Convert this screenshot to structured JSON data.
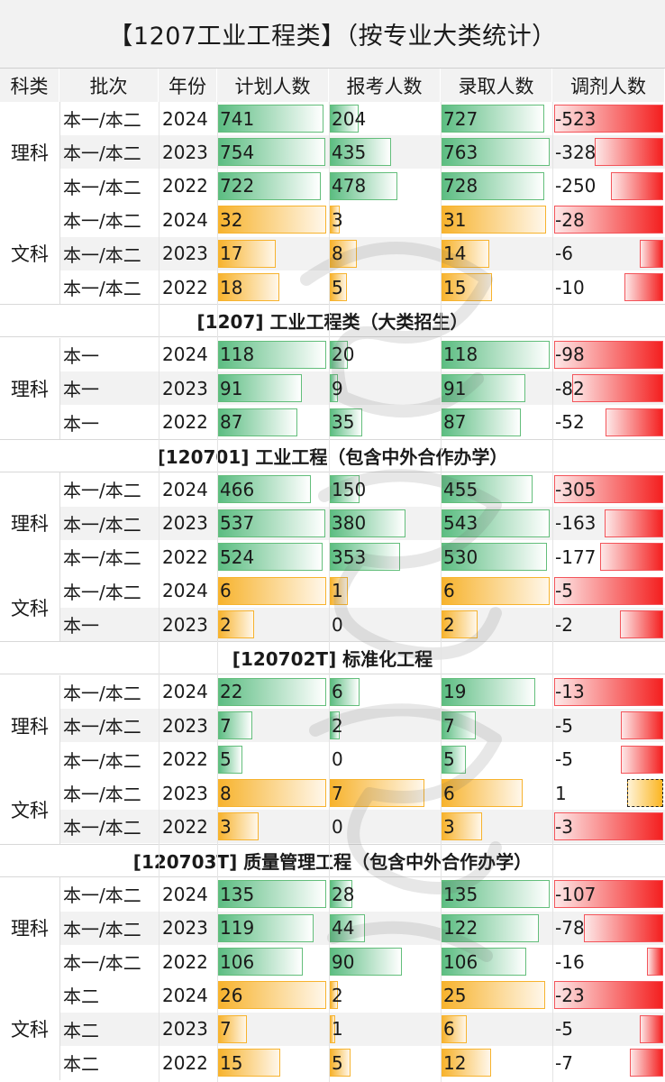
{
  "title": "【1207工业工程类】（按专业大类统计）",
  "headers": [
    "科类",
    "批次",
    "年份",
    "计划人数",
    "报考人数",
    "录取人数",
    "调剂人数"
  ],
  "colors": {
    "green": "#63be7b",
    "orange": "#f7b32e",
    "red": "#f80d0d"
  },
  "sections": [
    {
      "label": "",
      "groups": [
        {
          "subject": "理科",
          "rows": [
            {
              "batch": "本一/本二",
              "year": "2024",
              "plan": 741,
              "apply": 204,
              "admit": 727,
              "adjust": -523
            },
            {
              "batch": "本一/本二",
              "year": "2023",
              "plan": 754,
              "apply": 435,
              "admit": 763,
              "adjust": -328
            },
            {
              "batch": "本一/本二",
              "year": "2022",
              "plan": 722,
              "apply": 478,
              "admit": 728,
              "adjust": -250
            }
          ]
        },
        {
          "subject": "文科",
          "rows": [
            {
              "batch": "本一/本二",
              "year": "2024",
              "plan": 32,
              "apply": 3,
              "admit": 31,
              "adjust": -28
            },
            {
              "batch": "本一/本二",
              "year": "2023",
              "plan": 17,
              "apply": 8,
              "admit": 14,
              "adjust": -6
            },
            {
              "batch": "本一/本二",
              "year": "2022",
              "plan": 18,
              "apply": 5,
              "admit": 15,
              "adjust": -10
            }
          ]
        }
      ]
    },
    {
      "label": "[1207] 工业工程类（大类招生）",
      "groups": [
        {
          "subject": "理科",
          "rows": [
            {
              "batch": "本一",
              "year": "2024",
              "plan": 118,
              "apply": 20,
              "admit": 118,
              "adjust": -98
            },
            {
              "batch": "本一",
              "year": "2023",
              "plan": 91,
              "apply": 9,
              "admit": 91,
              "adjust": -82
            },
            {
              "batch": "本一",
              "year": "2022",
              "plan": 87,
              "apply": 35,
              "admit": 87,
              "adjust": -52
            }
          ]
        }
      ]
    },
    {
      "label": "[120701] 工业工程（包含中外合作办学）",
      "groups": [
        {
          "subject": "理科",
          "rows": [
            {
              "batch": "本一/本二",
              "year": "2024",
              "plan": 466,
              "apply": 150,
              "admit": 455,
              "adjust": -305
            },
            {
              "batch": "本一/本二",
              "year": "2023",
              "plan": 537,
              "apply": 380,
              "admit": 543,
              "adjust": -163
            },
            {
              "batch": "本一/本二",
              "year": "2022",
              "plan": 524,
              "apply": 353,
              "admit": 530,
              "adjust": -177
            }
          ]
        },
        {
          "subject": "文科",
          "rows": [
            {
              "batch": "本一/本二",
              "year": "2024",
              "plan": 6,
              "apply": 1,
              "admit": 6,
              "adjust": -5
            },
            {
              "batch": "本一",
              "year": "2023",
              "plan": 2,
              "apply": 0,
              "admit": 2,
              "adjust": -2
            }
          ]
        }
      ]
    },
    {
      "label": "[120702T] 标准化工程",
      "groups": [
        {
          "subject": "理科",
          "rows": [
            {
              "batch": "本一/本二",
              "year": "2024",
              "plan": 22,
              "apply": 6,
              "admit": 19,
              "adjust": -13
            },
            {
              "batch": "本一/本二",
              "year": "2023",
              "plan": 7,
              "apply": 2,
              "admit": 7,
              "adjust": -5
            },
            {
              "batch": "本一/本二",
              "year": "2022",
              "plan": 5,
              "apply": 0,
              "admit": 5,
              "adjust": -5
            }
          ]
        },
        {
          "subject": "文科",
          "rows": [
            {
              "batch": "本一/本二",
              "year": "2023",
              "plan": 8,
              "apply": 7,
              "admit": 6,
              "adjust": 1
            },
            {
              "batch": "本一/本二",
              "year": "2022",
              "plan": 3,
              "apply": 0,
              "admit": 3,
              "adjust": -3
            }
          ]
        }
      ]
    },
    {
      "label": "[120703T] 质量管理工程（包含中外合作办学）",
      "groups": [
        {
          "subject": "理科",
          "rows": [
            {
              "batch": "本一/本二",
              "year": "2024",
              "plan": 135,
              "apply": 28,
              "admit": 135,
              "adjust": -107
            },
            {
              "batch": "本一/本二",
              "year": "2023",
              "plan": 119,
              "apply": 44,
              "admit": 122,
              "adjust": -78
            },
            {
              "batch": "本一/本二",
              "year": "2022",
              "plan": 106,
              "apply": 90,
              "admit": 106,
              "adjust": -16
            }
          ]
        },
        {
          "subject": "文科",
          "rows": [
            {
              "batch": "本二",
              "year": "2024",
              "plan": 26,
              "apply": 2,
              "admit": 25,
              "adjust": -23
            },
            {
              "batch": "本二",
              "year": "2023",
              "plan": 7,
              "apply": 1,
              "admit": 6,
              "adjust": -5
            },
            {
              "batch": "本二",
              "year": "2022",
              "plan": 15,
              "apply": 5,
              "admit": 12,
              "adjust": -7
            }
          ]
        }
      ]
    }
  ]
}
